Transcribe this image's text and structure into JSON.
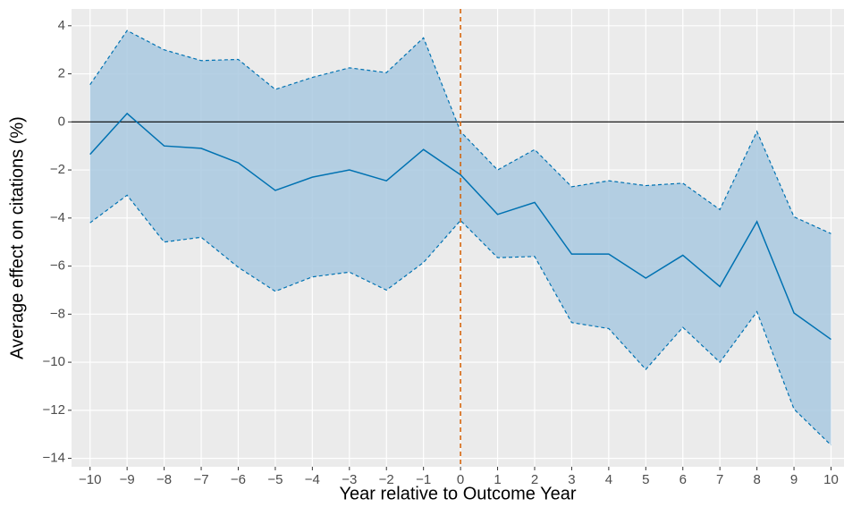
{
  "chart_data": {
    "type": "line",
    "x_label": "Year relative to Outcome Year",
    "y_label": "Average effect on citations (%)",
    "x": [
      -10,
      -9,
      -8,
      -7,
      -6,
      -5,
      -4,
      -3,
      -2,
      -1,
      0,
      1,
      2,
      3,
      4,
      5,
      6,
      7,
      8,
      9,
      10
    ],
    "values": [
      -1.35,
      0.35,
      -1.0,
      -1.1,
      -1.7,
      -2.85,
      -2.3,
      -2.0,
      -2.45,
      -1.15,
      -2.2,
      -3.85,
      -3.35,
      -5.5,
      -5.5,
      -6.5,
      -5.55,
      -6.85,
      -4.15,
      -7.95,
      -9.05
    ],
    "upper": [
      1.55,
      3.8,
      3.0,
      2.55,
      2.6,
      1.35,
      1.85,
      2.25,
      2.05,
      3.5,
      -0.4,
      -2.0,
      -1.15,
      -2.7,
      -2.45,
      -2.65,
      -2.55,
      -3.65,
      -0.4,
      -3.95,
      -4.65
    ],
    "lower": [
      -4.2,
      -3.05,
      -5.0,
      -4.8,
      -6.05,
      -7.05,
      -6.45,
      -6.25,
      -7.0,
      -5.85,
      -4.1,
      -5.65,
      -5.6,
      -8.35,
      -8.6,
      -10.3,
      -8.55,
      -10.0,
      -7.9,
      -11.95,
      -13.45
    ],
    "color": "#0072B2",
    "band_color": "#A9C9E0",
    "hline": 0,
    "hline_color": "#000000",
    "vline": 0,
    "vline_color": "#D55E00",
    "xlim": [
      -10.5,
      10.35
    ],
    "ylim": [
      -14.35,
      4.7
    ],
    "xticks": [
      {
        "value": -10,
        "label": "−10"
      },
      {
        "value": -9,
        "label": "−9"
      },
      {
        "value": -8,
        "label": "−8"
      },
      {
        "value": -7,
        "label": "−7"
      },
      {
        "value": -6,
        "label": "−6"
      },
      {
        "value": -5,
        "label": "−5"
      },
      {
        "value": -4,
        "label": "−4"
      },
      {
        "value": -3,
        "label": "−3"
      },
      {
        "value": -2,
        "label": "−2"
      },
      {
        "value": -1,
        "label": "−1"
      },
      0,
      1,
      2,
      3,
      4,
      5,
      6,
      7,
      8,
      9,
      10
    ],
    "yticks": [
      {
        "value": -14,
        "label": "−14"
      },
      {
        "value": -12,
        "label": "−12"
      },
      {
        "value": -10,
        "label": "−10"
      },
      {
        "value": -8,
        "label": "−8"
      },
      {
        "value": -6,
        "label": "−6"
      },
      {
        "value": -4,
        "label": "−4"
      },
      {
        "value": -2,
        "label": "−2"
      },
      0,
      2,
      4
    ],
    "grid": true
  }
}
